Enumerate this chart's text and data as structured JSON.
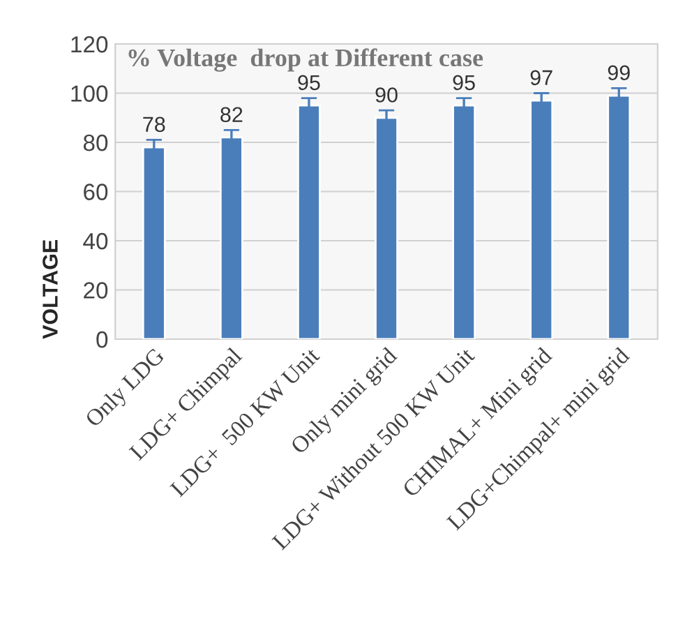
{
  "chart_data": {
    "type": "bar",
    "title": "% Voltage  drop at Different case",
    "ylabel": "VOLTAGE",
    "categories": [
      "Only LDG",
      "LDG+ Chimpal",
      "LDG+  500 KW Unit",
      "Only mini grid",
      "LDG+ Without 500 KW Unit",
      "CHIMAL+ Mini grid",
      "LDG+Chimpal+ mini grid"
    ],
    "values": [
      78,
      82,
      95,
      90,
      95,
      97,
      99
    ],
    "errors": [
      3,
      3,
      3,
      3,
      3,
      3,
      3
    ],
    "color": "#4a7ebb",
    "data_labels": true,
    "ylim": [
      0,
      120
    ],
    "yticks": [
      0,
      20,
      40,
      60,
      80,
      100,
      120
    ],
    "grid": "y"
  }
}
